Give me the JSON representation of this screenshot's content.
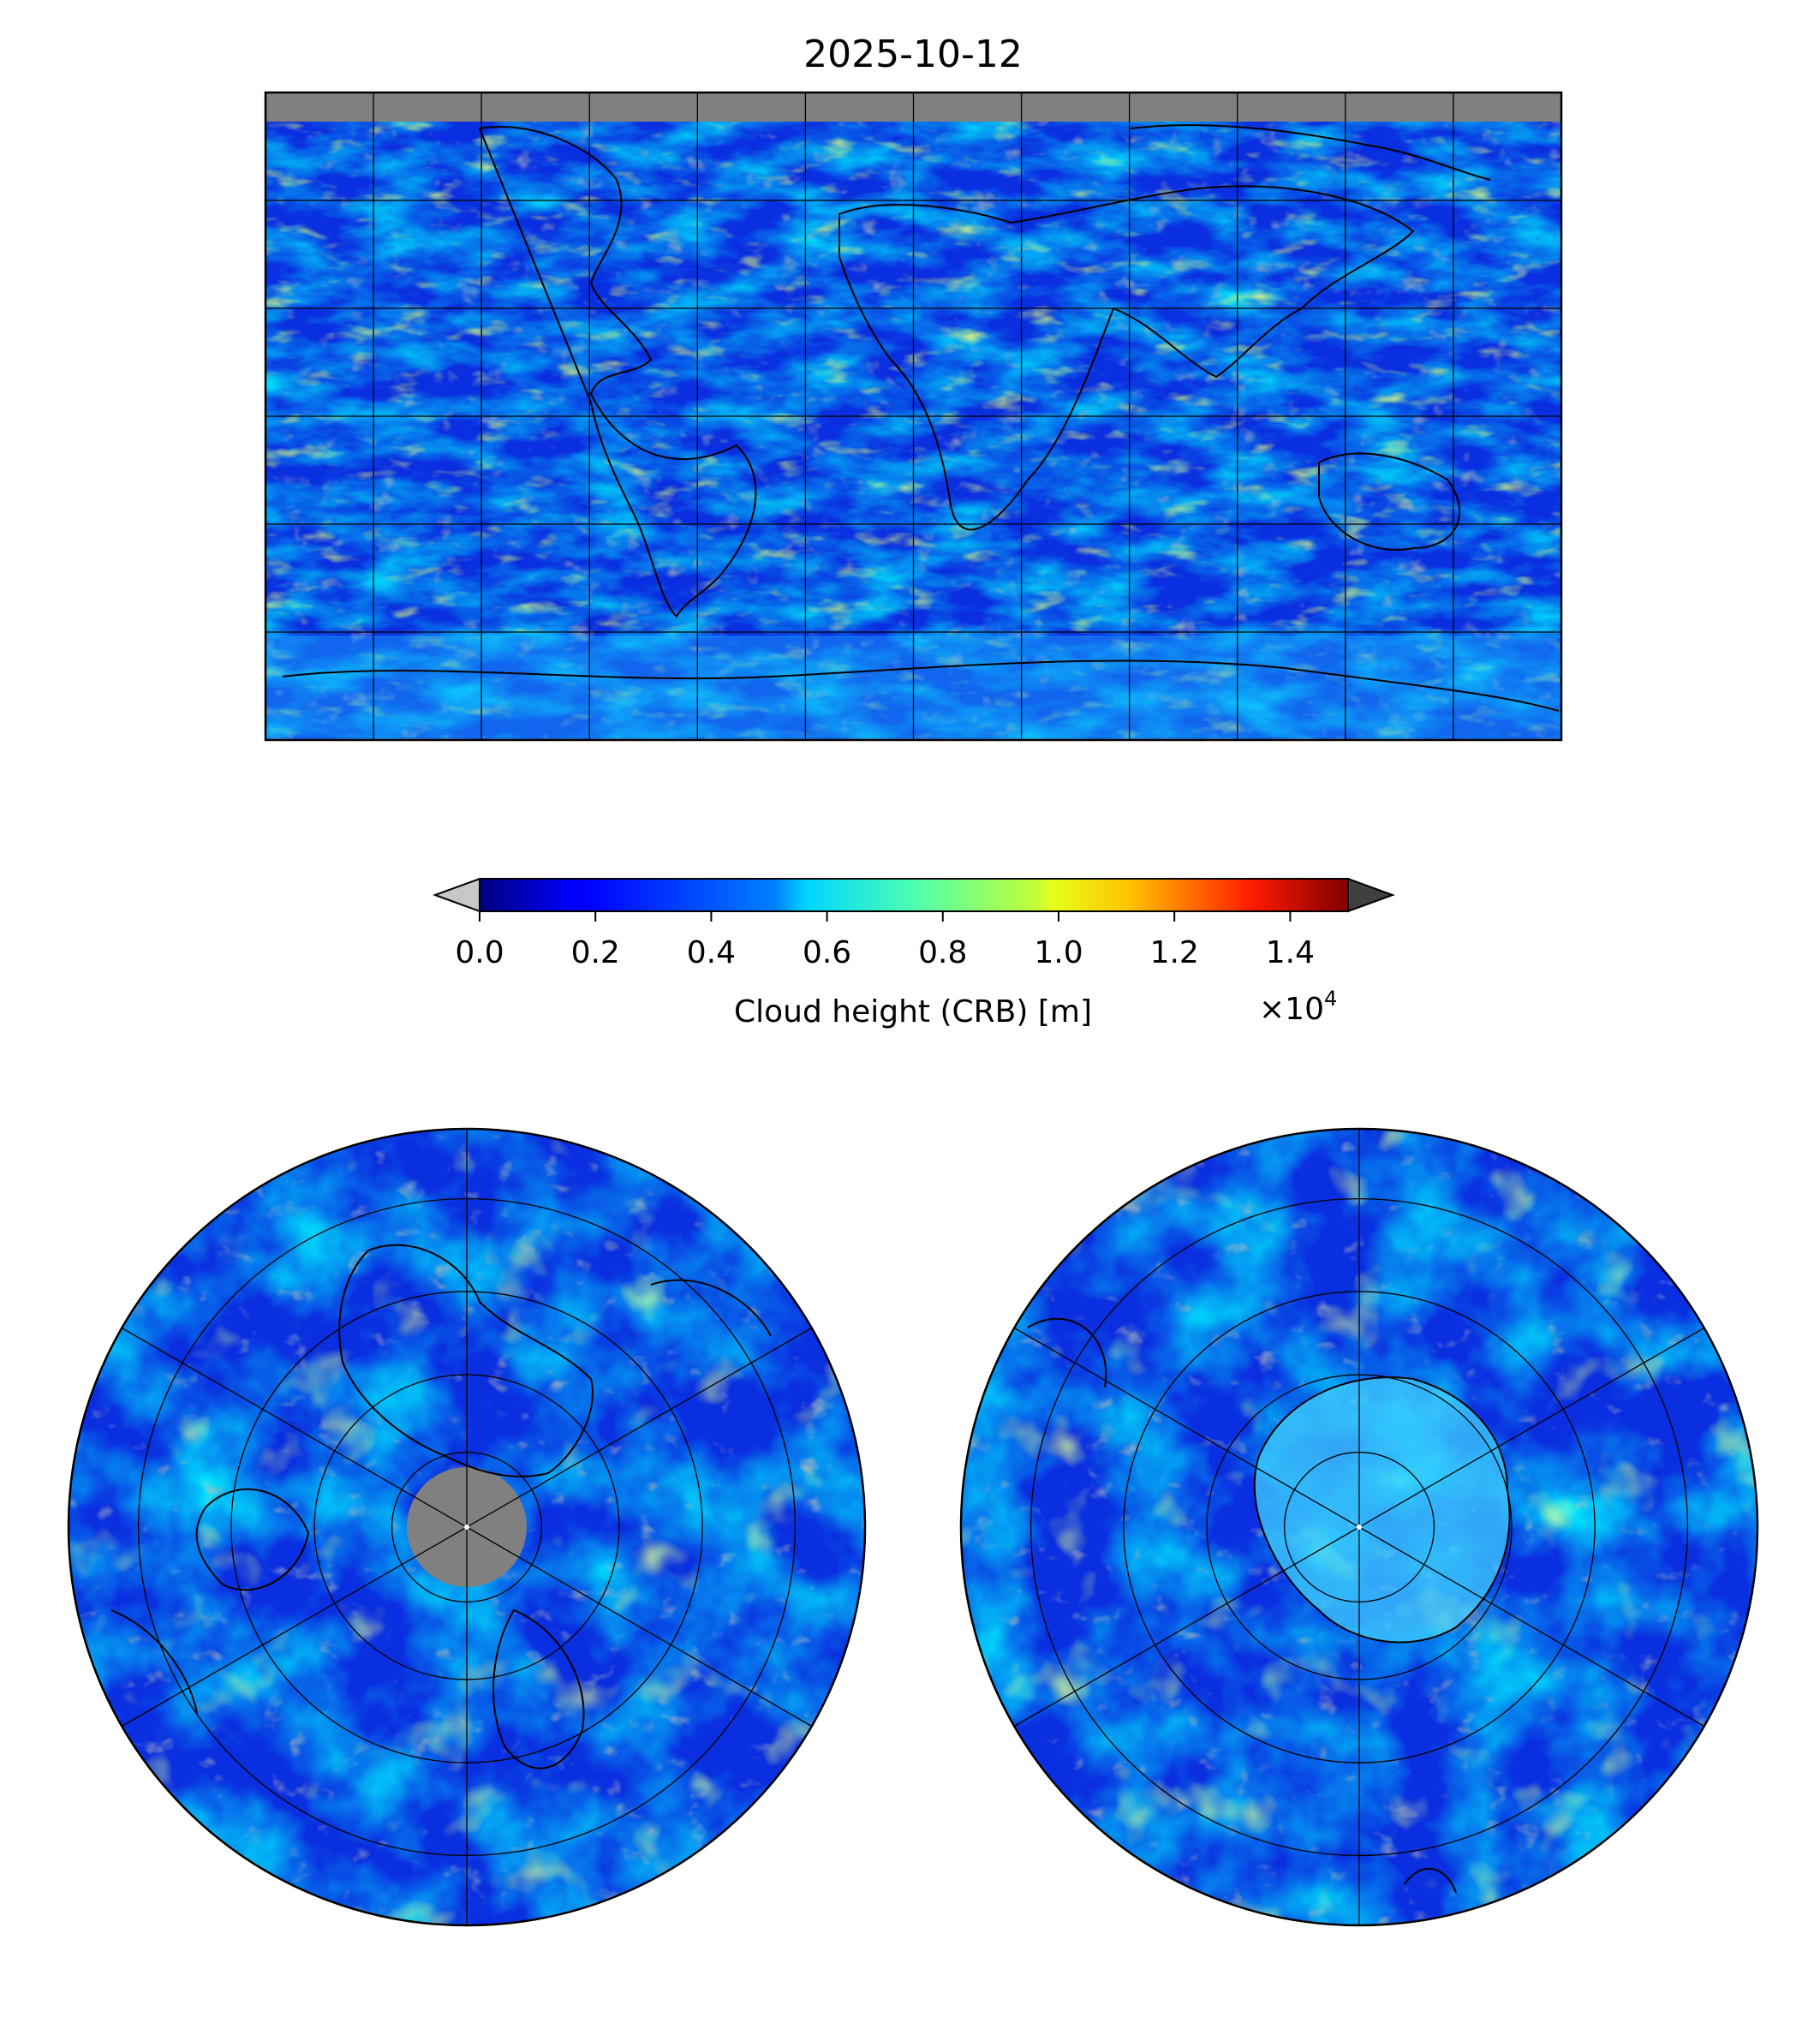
{
  "figure": {
    "title": "2025-10-12"
  },
  "colorbar": {
    "label": "Cloud height (CRB) [m]",
    "ticks": [
      "0.0",
      "0.2",
      "0.4",
      "0.6",
      "0.8",
      "1.0",
      "1.2",
      "1.4"
    ],
    "offset_base": "×10",
    "offset_exp": "4",
    "range": [
      0,
      15000
    ],
    "colormap": "jet",
    "under_color": "#c8c8c8",
    "over_color": "#404040",
    "missing_color": "#808080"
  },
  "maps": [
    {
      "name": "global-map",
      "projection": "plate-carree",
      "extent_lon": [
        -180,
        180
      ],
      "extent_lat": [
        -90,
        90
      ],
      "graticule_lon_step": 30,
      "graticule_lat_step": 30
    },
    {
      "name": "north-polar-map",
      "projection": "north-polar-stereographic",
      "graticule_lat": [
        30,
        45,
        60,
        75
      ],
      "graticule_lon_step": 60
    },
    {
      "name": "south-polar-map",
      "projection": "south-polar-stereographic",
      "graticule_lat": [
        -30,
        -45,
        -60,
        -75
      ],
      "graticule_lon_step": 60
    }
  ]
}
